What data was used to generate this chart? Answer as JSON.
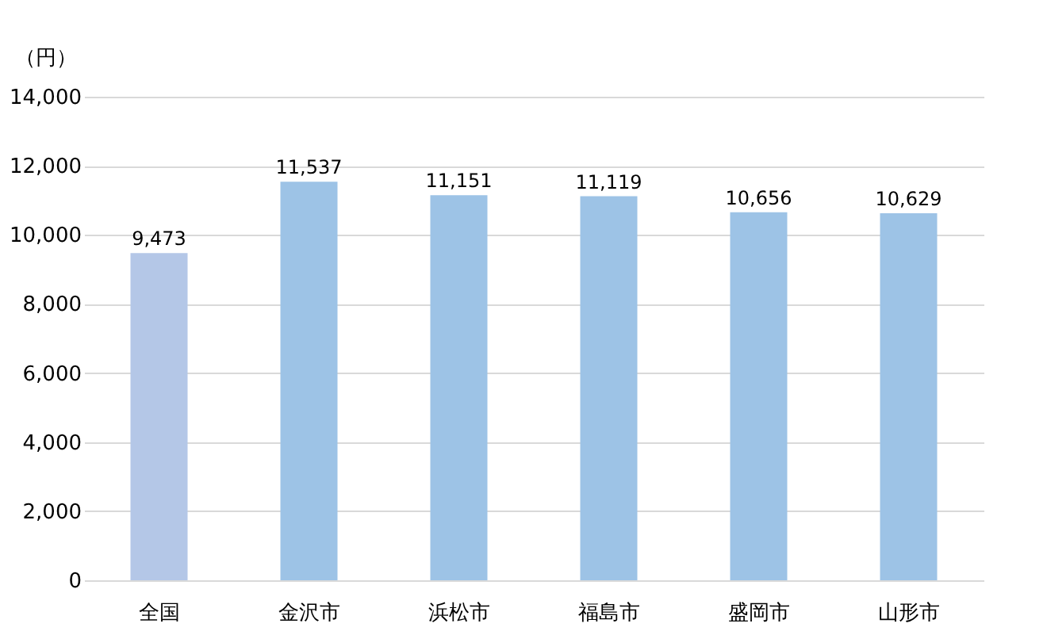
{
  "chart_data": {
    "type": "bar",
    "ylabel": "（円）",
    "categories": [
      "全国",
      "金沢市",
      "浜松市",
      "福島市",
      "盛岡市",
      "山形市"
    ],
    "values": [
      9473,
      11537,
      11151,
      11119,
      10656,
      10629
    ],
    "value_labels": [
      "9,473",
      "11,537",
      "11,151",
      "11,119",
      "10,656",
      "10,629"
    ],
    "colors": [
      "#b4c7e7",
      "#9dc3e6",
      "#9dc3e6",
      "#9dc3e6",
      "#9dc3e6",
      "#9dc3e6"
    ],
    "ylim": [
      0,
      14000
    ],
    "yticks": [
      0,
      {
        "value": 2000,
        "label": "2,000"
      },
      {
        "value": 4000,
        "label": "4,000"
      },
      {
        "value": 6000,
        "label": "6,000"
      },
      {
        "value": 8000,
        "label": "8,000"
      },
      {
        "value": 10000,
        "label": "10,000"
      },
      {
        "value": 12000,
        "label": "12,000"
      },
      {
        "value": 14000,
        "label": "14,000"
      }
    ],
    "grid": "y"
  }
}
